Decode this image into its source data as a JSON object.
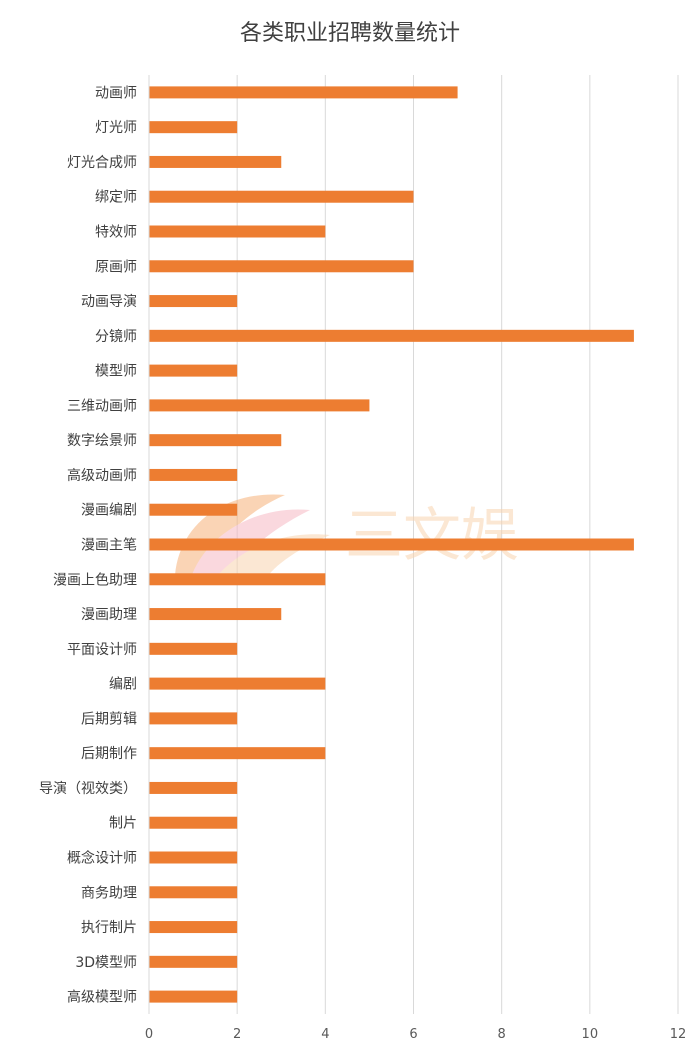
{
  "chart_data": {
    "type": "bar",
    "orientation": "horizontal",
    "title": "各类职业招聘数量统计",
    "xlabel": "",
    "ylabel": "",
    "xlim": [
      0,
      12
    ],
    "x_ticks": [
      0,
      2,
      4,
      6,
      8,
      10,
      12
    ],
    "grid": "vertical",
    "legend": "none",
    "bar_color": "#ED7D31",
    "categories": [
      "动画师",
      "灯光师",
      "灯光合成师",
      "绑定师",
      "特效师",
      "原画师",
      "动画导演",
      "分镜师",
      "模型师",
      "三维动画师",
      "数字绘景师",
      "高级动画师",
      "漫画编剧",
      "漫画主笔",
      "漫画上色助理",
      "漫画助理",
      "平面设计师",
      "编剧",
      "后期剪辑",
      "后期制作",
      "导演（视效类）",
      "制片",
      "概念设计师",
      "商务助理",
      "执行制片",
      "3D模型师",
      "高级模型师"
    ],
    "values": [
      7,
      2,
      3,
      6,
      4,
      6,
      2,
      11,
      2,
      5,
      3,
      2,
      2,
      11,
      4,
      3,
      2,
      4,
      2,
      4,
      2,
      2,
      2,
      2,
      2,
      2,
      2
    ]
  },
  "watermark": {
    "text": "三文娱",
    "colors": [
      "#f6b27a",
      "#f7b9c4",
      "#f9d4b0"
    ]
  }
}
